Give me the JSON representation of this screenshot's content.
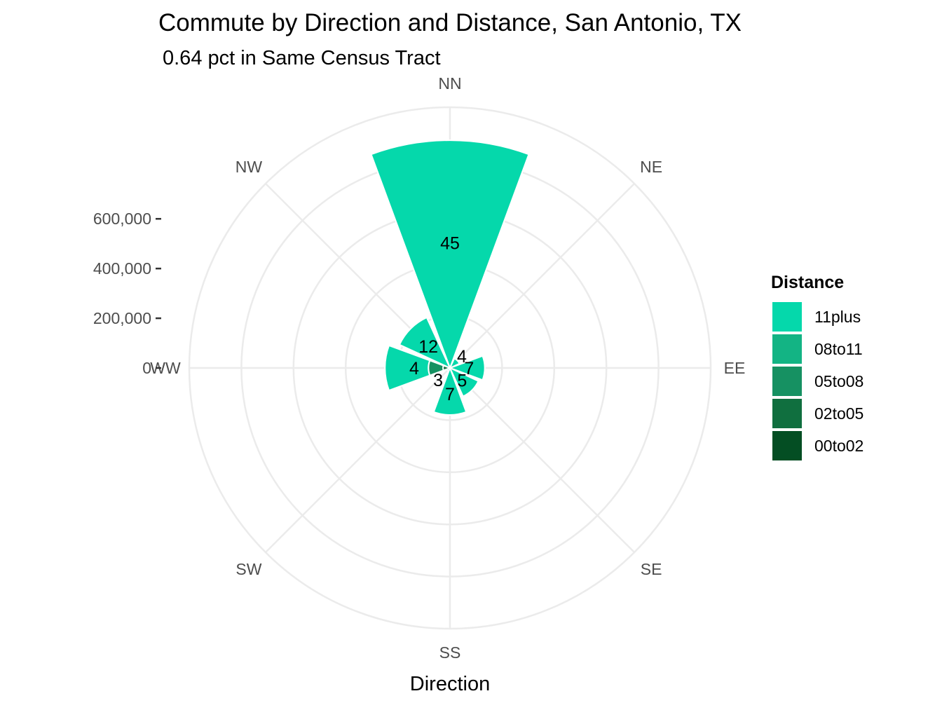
{
  "chart_data": {
    "type": "bar",
    "coord": "polar",
    "title": "Commute by Direction and Distance, San Antonio, TX",
    "subtitle": "0.64 pct in Same Census Tract",
    "xlabel": "Direction",
    "ylabel": "",
    "categories": [
      "NN",
      "NE",
      "EE",
      "SE",
      "SS",
      "SW",
      "WW",
      "NW"
    ],
    "ylim": [
      0,
      750000
    ],
    "y_ticks": [
      0,
      200000,
      400000,
      600000
    ],
    "y_tick_labels": [
      "0",
      "200,000",
      "400,000",
      "600,000"
    ],
    "grid": true,
    "legend_position": "right",
    "legend_title": "Distance",
    "series": [
      {
        "name": "11plus",
        "color": "#05d8ab",
        "values": [
          655000,
          30000,
          100000,
          90000,
          135000,
          10000,
          125000,
          160000
        ]
      },
      {
        "name": "08to11",
        "color": "#13b484",
        "values": [
          0,
          0,
          0,
          0,
          0,
          0,
          0,
          0
        ]
      },
      {
        "name": "05to08",
        "color": "#169162",
        "values": [
          0,
          0,
          0,
          0,
          0,
          0,
          42000,
          0
        ]
      },
      {
        "name": "02to05",
        "color": "#106f3f",
        "values": [
          0,
          0,
          0,
          0,
          0,
          0,
          20000,
          0
        ]
      },
      {
        "name": "00to02",
        "color": "#044e23",
        "values": [
          0,
          0,
          0,
          0,
          0,
          0,
          0,
          0
        ]
      }
    ],
    "bar_labels": [
      {
        "category": "NN",
        "text": "45"
      },
      {
        "category": "NE",
        "text": "4"
      },
      {
        "category": "EE",
        "text": "7"
      },
      {
        "category": "SE",
        "text": "5"
      },
      {
        "category": "SS",
        "text": "7"
      },
      {
        "category": "SW",
        "text": "3"
      },
      {
        "category": "WW",
        "text": "4"
      },
      {
        "category": "NW",
        "text": "12"
      }
    ]
  }
}
